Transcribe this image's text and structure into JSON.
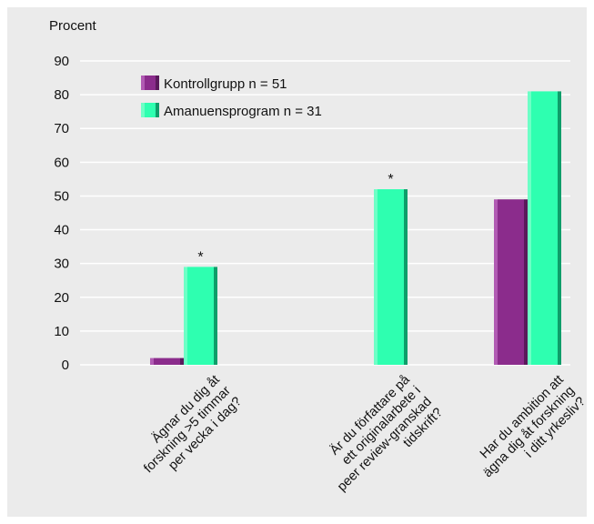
{
  "chart_data": {
    "type": "bar",
    "ylabel": "Procent",
    "xlabel": "",
    "title": "",
    "ylim": [
      0,
      90
    ],
    "yticks": [
      0,
      10,
      20,
      30,
      40,
      50,
      60,
      70,
      80,
      90
    ],
    "grid": true,
    "legend_position": "top-left",
    "categories": [
      "Ägnar du dig åt forskning >5 timmar per vecka i dag?",
      "Är du författare på ett originalarbete i peer review-granskad tidskrift?",
      "Har du ambition att ägna dig åt forskning i ditt yrkesliv?"
    ],
    "category_lines": [
      [
        "Ägnar du dig åt",
        "forskning >5 timmar",
        "per vecka i dag?"
      ],
      [
        "Är du författare på",
        "ett originalarbete i",
        "peer review-granskad",
        "tidskrift?"
      ],
      [
        "Har du ambition att",
        "ägna dig åt forskning",
        "i ditt yrkesliv?"
      ]
    ],
    "series": [
      {
        "name": "Kontrollgrupp n = 51",
        "values": [
          2,
          0,
          49
        ],
        "color": "#8b2c8c",
        "light": "#b15bb3",
        "dark": "#5a1a5b"
      },
      {
        "name": "Amanuensprogram n = 31",
        "values": [
          29,
          52,
          81
        ],
        "color": "#2effb0",
        "light": "#6dffc6",
        "dark": "#0e9e6a"
      }
    ],
    "annotations": [
      {
        "category_index": 0,
        "text": "*"
      },
      {
        "category_index": 1,
        "text": "*"
      }
    ]
  }
}
